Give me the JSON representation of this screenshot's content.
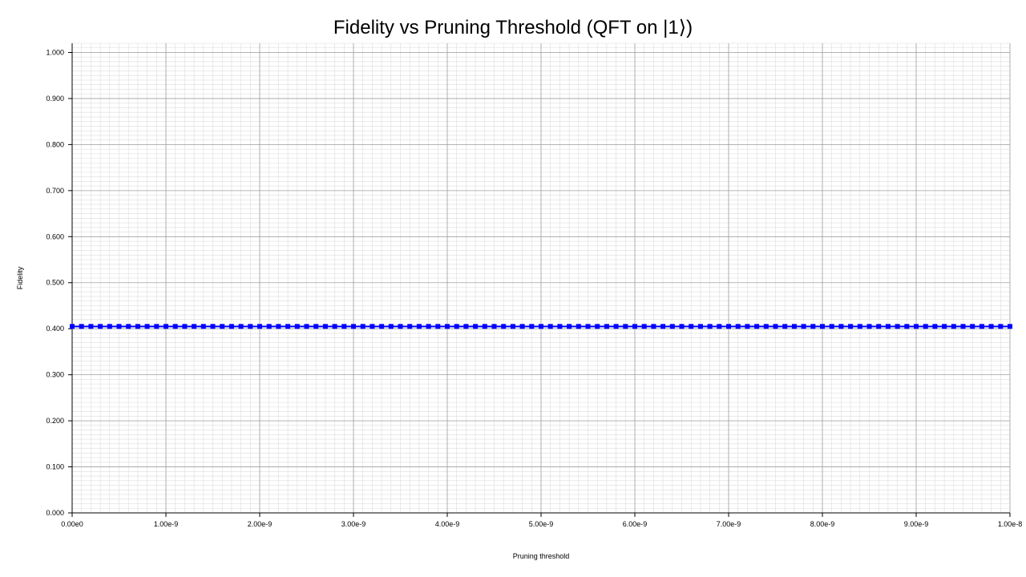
{
  "chart_data": {
    "type": "line",
    "title": "Fidelity vs Pruning Threshold (QFT on |1⟩)",
    "xlabel": "Pruning threshold",
    "ylabel": "Fidelity",
    "xlim": [
      0,
      1e-08
    ],
    "ylim": [
      0,
      1.02
    ],
    "x_ticks": [
      0,
      1e-09,
      2e-09,
      3e-09,
      4e-09,
      5e-09,
      6e-09,
      7e-09,
      8e-09,
      9e-09,
      1e-08
    ],
    "x_tick_labels": [
      "0.00e0",
      "1.00e-9",
      "2.00e-9",
      "3.00e-9",
      "4.00e-9",
      "5.00e-9",
      "6.00e-9",
      "7.00e-9",
      "8.00e-9",
      "9.00e-9",
      "1.00e-8"
    ],
    "y_ticks": [
      0,
      0.1,
      0.2,
      0.3,
      0.4,
      0.5,
      0.6,
      0.7,
      0.8,
      0.9,
      1.0
    ],
    "y_tick_labels": [
      "0.000",
      "0.100",
      "0.200",
      "0.300",
      "0.400",
      "0.500",
      "0.600",
      "0.700",
      "0.800",
      "0.900",
      "1.000"
    ],
    "grid": true,
    "legend": "none",
    "series": [
      {
        "color": "#0000ff",
        "x": [
          0,
          1e-10,
          2e-10,
          3e-10,
          4e-10,
          5e-10,
          6e-10,
          7e-10,
          8e-10,
          9e-10,
          1e-09,
          1.1e-09,
          1.2e-09,
          1.3e-09,
          1.4e-09,
          1.5e-09,
          1.6e-09,
          1.7e-09,
          1.8e-09,
          1.9e-09,
          2e-09,
          2.1e-09,
          2.2e-09,
          2.3e-09,
          2.4e-09,
          2.5e-09,
          2.6e-09,
          2.7e-09,
          2.8e-09,
          2.9e-09,
          3e-09,
          3.1e-09,
          3.2e-09,
          3.3e-09,
          3.4e-09,
          3.5e-09,
          3.6e-09,
          3.7e-09,
          3.8e-09,
          3.9e-09,
          4e-09,
          4.1e-09,
          4.2e-09,
          4.3e-09,
          4.4e-09,
          4.5e-09,
          4.6e-09,
          4.7e-09,
          4.8e-09,
          4.9e-09,
          5e-09,
          5.1e-09,
          5.2e-09,
          5.3e-09,
          5.4e-09,
          5.5e-09,
          5.6e-09,
          5.7e-09,
          5.8e-09,
          5.9e-09,
          6e-09,
          6.1e-09,
          6.2e-09,
          6.3e-09,
          6.4e-09,
          6.5e-09,
          6.6e-09,
          6.7e-09,
          6.8e-09,
          6.9e-09,
          7e-09,
          7.1e-09,
          7.2e-09,
          7.3e-09,
          7.4e-09,
          7.5e-09,
          7.6e-09,
          7.7e-09,
          7.8e-09,
          7.9e-09,
          8e-09,
          8.1e-09,
          8.2e-09,
          8.3e-09,
          8.4e-09,
          8.5e-09,
          8.6e-09,
          8.7e-09,
          8.8e-09,
          8.9e-09,
          9e-09,
          9.1e-09,
          9.2e-09,
          9.3e-09,
          9.4e-09,
          9.5e-09,
          9.6e-09,
          9.7e-09,
          9.8e-09,
          9.9e-09,
          1e-08
        ],
        "y": [
          0.405,
          0.405,
          0.405,
          0.405,
          0.405,
          0.405,
          0.405,
          0.405,
          0.405,
          0.405,
          0.405,
          0.405,
          0.405,
          0.405,
          0.405,
          0.405,
          0.405,
          0.405,
          0.405,
          0.405,
          0.405,
          0.405,
          0.405,
          0.405,
          0.405,
          0.405,
          0.405,
          0.405,
          0.405,
          0.405,
          0.405,
          0.405,
          0.405,
          0.405,
          0.405,
          0.405,
          0.405,
          0.405,
          0.405,
          0.405,
          0.405,
          0.405,
          0.405,
          0.405,
          0.405,
          0.405,
          0.405,
          0.405,
          0.405,
          0.405,
          0.405,
          0.405,
          0.405,
          0.405,
          0.405,
          0.405,
          0.405,
          0.405,
          0.405,
          0.405,
          0.405,
          0.405,
          0.405,
          0.405,
          0.405,
          0.405,
          0.405,
          0.405,
          0.405,
          0.405,
          0.405,
          0.405,
          0.405,
          0.405,
          0.405,
          0.405,
          0.405,
          0.405,
          0.405,
          0.405,
          0.405,
          0.405,
          0.405,
          0.405,
          0.405,
          0.405,
          0.405,
          0.405,
          0.405,
          0.405,
          0.405,
          0.405,
          0.405,
          0.405,
          0.405,
          0.405,
          0.405,
          0.405,
          0.405,
          0.405,
          0.405
        ]
      }
    ]
  }
}
